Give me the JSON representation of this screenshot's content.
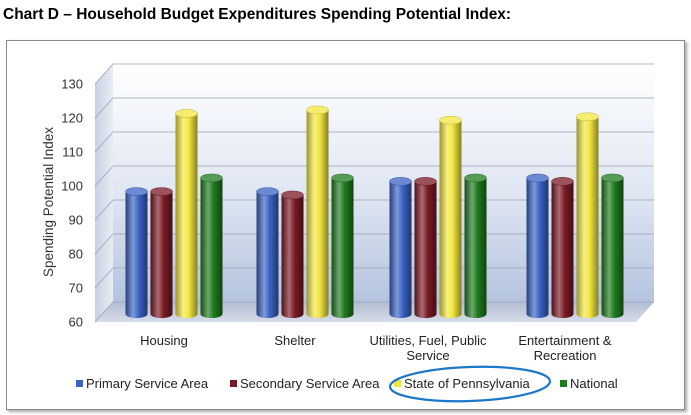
{
  "heading": "Chart D – Household Budget Expenditures Spending Potential Index:",
  "chart_data": {
    "type": "bar",
    "title": "",
    "ylabel": "Spending Potential Index",
    "xlabel": "",
    "ylim": [
      60,
      130
    ],
    "yticks": [
      "60",
      "70",
      "80",
      "90",
      "100",
      "110",
      "120",
      "130"
    ],
    "categories": [
      [
        "Housing"
      ],
      [
        "Shelter"
      ],
      [
        "Utilities, Fuel, Public",
        "Service"
      ],
      [
        "Entertainment &",
        "Recreation"
      ]
    ],
    "series": [
      {
        "name": "Primary Service Area",
        "color": "#3a63c4",
        "values": [
          96,
          96,
          99,
          100
        ]
      },
      {
        "name": "Secondary Service Area",
        "color": "#7a1a24",
        "values": [
          96,
          95,
          99,
          99
        ]
      },
      {
        "name": "State of Pennsylvania",
        "color": "#f2e640",
        "values": [
          119,
          120,
          117,
          118
        ]
      },
      {
        "name": "National",
        "color": "#1e7a1e",
        "values": [
          100,
          100,
          100,
          100
        ]
      }
    ],
    "legend_position": "bottom",
    "grid": true,
    "highlighted_legend_item": "State of Pennsylvania"
  }
}
